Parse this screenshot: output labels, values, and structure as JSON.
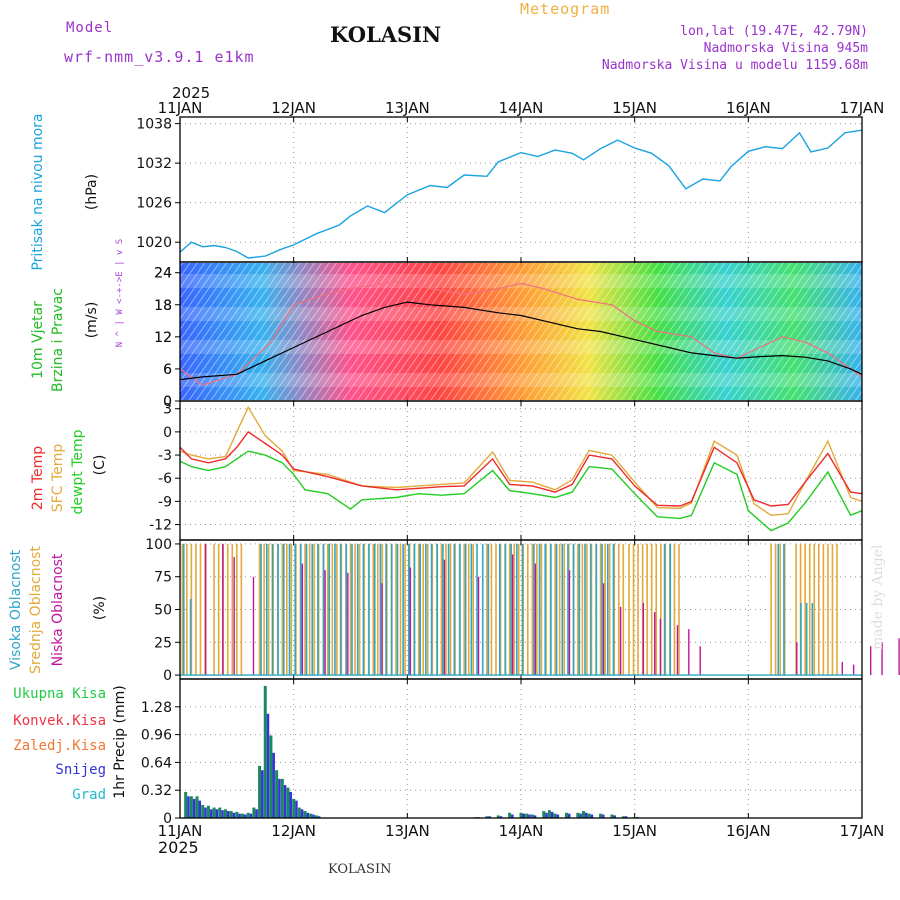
{
  "header": {
    "model_label": "Model",
    "model_name": "wrf-nmm_v3.9.1 e1km",
    "title": "KOLASIN",
    "product": "Meteogram",
    "coords": "lon,lat (19.47E, 42.79N)",
    "elevation": "Nadmorska Visina 945m",
    "model_elevation": "Nadmorska Visina u modelu 1159.68m",
    "year_top": "2025",
    "year_bottom": "2025",
    "footer": "KOLASIN",
    "credit": "made by Angel"
  },
  "colors": {
    "pressure": "#1aa3e0",
    "temp2m": "#ee2b2b",
    "sfc_temp": "#e3a93a",
    "dewpoint": "#22cc22",
    "high_cloud": "#2fa6c9",
    "mid_cloud": "#e3a93a",
    "low_cloud": "#c0159a",
    "total_precip": "#1a8a5a",
    "snow": "#3333dd",
    "title_purple": "#9933cc",
    "product_orange": "#f0b040"
  },
  "chart_data": [
    {
      "type": "line",
      "panel": "pressure",
      "ylabel_lines": [
        "Pritisak na nivou mora",
        "(hPa)"
      ],
      "x_ticks": [
        "11JAN",
        "12JAN",
        "13JAN",
        "14JAN",
        "15JAN",
        "16JAN",
        "17JAN"
      ],
      "yticks": [
        1020,
        1026,
        1032,
        1038
      ],
      "ylim": [
        1017,
        1039
      ],
      "grid": true,
      "series": [
        {
          "key": "pressure",
          "x": [
            0,
            0.1,
            0.2,
            0.3,
            0.4,
            0.5,
            0.6,
            0.75,
            0.9,
            1.0,
            1.2,
            1.4,
            1.5,
            1.65,
            1.8,
            2.0,
            2.2,
            2.35,
            2.5,
            2.7,
            2.8,
            3.0,
            3.15,
            3.3,
            3.45,
            3.55,
            3.7,
            3.85,
            4.0,
            4.15,
            4.3,
            4.45,
            4.6,
            4.75,
            4.85,
            5.0,
            5.15,
            5.3,
            5.45,
            5.55,
            5.7,
            5.85,
            6.0
          ],
          "values": [
            1018.5,
            1020,
            1019.3,
            1019.5,
            1019.2,
            1018.6,
            1017.6,
            1017.9,
            1019.0,
            1019.6,
            1021.3,
            1022.6,
            1024.0,
            1025.5,
            1024.5,
            1027.2,
            1028.6,
            1028.3,
            1030.2,
            1030.0,
            1032.2,
            1033.6,
            1033.0,
            1034.0,
            1033.5,
            1032.5,
            1034.2,
            1035.5,
            1034.3,
            1033.5,
            1031.6,
            1028.1,
            1029.6,
            1029.3,
            1031.5,
            1033.8,
            1034.5,
            1034.2,
            1036.6,
            1033.7,
            1034.3,
            1036.6,
            1037.0
          ]
        }
      ]
    },
    {
      "type": "line",
      "panel": "wind",
      "ylabel_lines": [
        "10m Vjetar",
        "Brzina i Pravac",
        "(m/s)"
      ],
      "compass_lines": [
        "N",
        "^",
        "|",
        "W <-+->E",
        "|",
        "v",
        "S"
      ],
      "yticks": [
        0,
        6,
        12,
        18,
        24
      ],
      "ylim": [
        0,
        26
      ],
      "grid": true,
      "series": [
        {
          "key": "speed",
          "x": [
            0,
            0.2,
            0.5,
            0.8,
            1.0,
            1.3,
            1.6,
            1.8,
            2.0,
            2.2,
            2.5,
            2.8,
            3.0,
            3.2,
            3.4,
            3.5,
            3.7,
            3.9,
            4.1,
            4.3,
            4.5,
            4.7,
            4.9,
            5.1,
            5.3,
            5.5,
            5.7,
            5.9,
            6.0
          ],
          "values": [
            4,
            4.5,
            5,
            8,
            10,
            13,
            16,
            17.5,
            18.5,
            18,
            17.5,
            16.5,
            16,
            15,
            14,
            13.5,
            13,
            12,
            11,
            10,
            9,
            8.5,
            8,
            8.3,
            8.5,
            8.2,
            7.5,
            6,
            5
          ]
        },
        {
          "key": "gust",
          "x": [
            0,
            0.2,
            0.5,
            0.8,
            1.0,
            1.3,
            1.5,
            1.8,
            2.0,
            2.2,
            2.5,
            2.8,
            3.0,
            3.2,
            3.5,
            3.8,
            4.0,
            4.2,
            4.5,
            4.7,
            4.9,
            5.1,
            5.3,
            5.5,
            5.7,
            5.9,
            6.0
          ],
          "values": [
            6,
            3,
            5,
            11,
            18,
            20,
            21,
            22,
            22.5,
            21,
            20,
            21,
            22,
            21,
            19,
            18,
            15,
            13,
            12,
            9,
            8,
            10,
            12,
            11,
            9,
            6,
            4.5
          ]
        }
      ]
    },
    {
      "type": "line",
      "panel": "temperature",
      "ylabel_lines": [
        "2m Temp",
        "SFC Temp",
        "dewpt Temp",
        "(C)"
      ],
      "yticks": [
        -12,
        -9,
        -6,
        -3,
        0,
        3
      ],
      "ylim": [
        -14,
        4
      ],
      "grid": true,
      "series": [
        {
          "key": "sfc",
          "x": [
            0,
            0.1,
            0.25,
            0.4,
            0.5,
            0.6,
            0.75,
            0.9,
            1.0,
            1.3,
            1.6,
            1.9,
            2.1,
            2.3,
            2.5,
            2.75,
            2.9,
            3.1,
            3.3,
            3.45,
            3.6,
            3.8,
            4.0,
            4.2,
            4.4,
            4.5,
            4.7,
            4.9,
            5.05,
            5.2,
            5.35,
            5.5,
            5.7,
            5.9,
            6.0
          ],
          "values": [
            -2.5,
            -3.0,
            -3.5,
            -3.2,
            0,
            3.2,
            -0.5,
            -2.5,
            -5.0,
            -5.5,
            -7,
            -7.2,
            -7,
            -6.8,
            -6.6,
            -2.6,
            -6.3,
            -6.5,
            -7.5,
            -6.2,
            -2.4,
            -3.0,
            -6.5,
            -9.8,
            -9.9,
            -9.2,
            -1.2,
            -3.0,
            -9.3,
            -10.8,
            -10.6,
            -6.5,
            -1.2,
            -8.5,
            -9.0
          ]
        },
        {
          "key": "t2m",
          "x": [
            0,
            0.1,
            0.25,
            0.4,
            0.5,
            0.6,
            0.75,
            0.9,
            1.0,
            1.3,
            1.6,
            1.9,
            2.1,
            2.3,
            2.5,
            2.75,
            2.9,
            3.1,
            3.3,
            3.45,
            3.6,
            3.8,
            4.0,
            4.2,
            4.4,
            4.5,
            4.7,
            4.9,
            5.05,
            5.2,
            5.35,
            5.5,
            5.7,
            5.9,
            6.0
          ],
          "values": [
            -2.0,
            -3.5,
            -4.0,
            -3.5,
            -2.0,
            0,
            -1.5,
            -3.0,
            -4.8,
            -5.8,
            -7,
            -7.5,
            -7.3,
            -7.1,
            -7.0,
            -3.5,
            -6.8,
            -7,
            -7.8,
            -6.8,
            -3.0,
            -3.5,
            -7,
            -9.5,
            -9.6,
            -9.0,
            -2.0,
            -4.0,
            -8.8,
            -9.6,
            -9.4,
            -6.5,
            -2.8,
            -7.8,
            -8.0
          ]
        },
        {
          "key": "dew",
          "x": [
            0,
            0.1,
            0.25,
            0.4,
            0.5,
            0.6,
            0.75,
            0.9,
            1.0,
            1.1,
            1.3,
            1.5,
            1.6,
            1.9,
            2.1,
            2.3,
            2.5,
            2.75,
            2.9,
            3.1,
            3.3,
            3.45,
            3.6,
            3.8,
            4.0,
            4.2,
            4.4,
            4.5,
            4.7,
            4.9,
            5.0,
            5.2,
            5.35,
            5.5,
            5.7,
            5.9,
            6.0
          ],
          "values": [
            -3.8,
            -4.5,
            -5.0,
            -4.5,
            -3.5,
            -2.5,
            -3.0,
            -4.0,
            -5.5,
            -7.5,
            -8.0,
            -10,
            -8.8,
            -8.5,
            -8.0,
            -8.2,
            -8.0,
            -5.0,
            -7.6,
            -8,
            -8.5,
            -7.8,
            -4.5,
            -4.8,
            -8,
            -11.0,
            -11.2,
            -10.8,
            -4.0,
            -5.5,
            -10.2,
            -12.8,
            -11.8,
            -9.2,
            -5.2,
            -10.8,
            -10.2
          ]
        }
      ]
    },
    {
      "type": "bar",
      "panel": "clouds",
      "ylabel_lines": [
        "Visoka Oblacnost",
        "Srednja Oblacnost",
        "Niska Oblacnost",
        "(%)"
      ],
      "yticks": [
        0,
        25,
        50,
        75,
        100
      ],
      "ylim": [
        -3,
        103
      ],
      "grid": true,
      "series": [
        {
          "key": "high",
          "segments": [
            [
              0.02,
              0.05,
              100
            ],
            [
              0.08,
              0.09,
              58
            ],
            [
              0.7,
              0.72,
              100
            ],
            [
              0.75,
              2.0,
              100
            ],
            [
              2.05,
              2.7,
              100
            ],
            [
              2.8,
              3.0,
              100
            ],
            [
              3.1,
              3.3,
              100
            ],
            [
              3.35,
              3.8,
              100
            ],
            [
              4.25,
              4.3,
              100
            ],
            [
              5.25,
              5.32,
              100
            ],
            [
              5.45,
              5.55,
              55
            ]
          ]
        },
        {
          "key": "mid",
          "segments": [
            [
              0.02,
              0.25,
              100
            ],
            [
              0.3,
              0.55,
              100
            ],
            [
              0.7,
              2.6,
              100
            ],
            [
              2.7,
              3.9,
              100
            ],
            [
              3.95,
              4.4,
              100
            ],
            [
              5.2,
              5.35,
              100
            ],
            [
              5.42,
              5.8,
              100
            ]
          ]
        },
        {
          "key": "low",
          "x": [
            0.2,
            0.35,
            0.45,
            0.62,
            1.05,
            1.25,
            1.45,
            1.75,
            2.0,
            2.3,
            2.6,
            2.9,
            3.1,
            3.4,
            3.7,
            3.85,
            4.05,
            4.15,
            4.2,
            4.35,
            4.45,
            4.55,
            5.4,
            5.8,
            5.9,
            6.05,
            6.15,
            6.3,
            6.35,
            6.45,
            6.6,
            6.75,
            6.85
          ],
          "values": [
            100,
            100,
            90,
            75,
            85,
            80,
            78,
            70,
            82,
            88,
            75,
            92,
            85,
            80,
            70,
            52,
            55,
            48,
            43,
            38,
            35,
            22,
            25,
            10,
            8,
            22,
            25,
            28,
            30,
            6,
            12,
            8,
            4
          ]
        }
      ]
    },
    {
      "type": "bar",
      "panel": "precipitation",
      "ylabel_lines": [
        "1hr Precip (mm)"
      ],
      "legend": [
        "Ukupna Kisa",
        "Konvek.Kisa",
        "Zaledj.Kisa",
        "Snijeg",
        "Grad"
      ],
      "yticks": [
        0,
        0.32,
        0.64,
        0.96,
        1.28
      ],
      "ylim": [
        0,
        1.6
      ],
      "grid": true,
      "series": [
        {
          "key": "total",
          "x": [
            0.05,
            0.1,
            0.15,
            0.2,
            0.25,
            0.3,
            0.35,
            0.4,
            0.45,
            0.5,
            0.55,
            0.6,
            0.65,
            0.7,
            0.75,
            0.8,
            0.85,
            0.9,
            0.95,
            1.0,
            1.05,
            1.1,
            1.15,
            1.2,
            2.6,
            2.7,
            2.8,
            2.9,
            3.0,
            3.05,
            3.1,
            3.2,
            3.25,
            3.3,
            3.4,
            3.5,
            3.55,
            3.6,
            3.7,
            3.8,
            3.9,
            4.0
          ],
          "values": [
            0.3,
            0.25,
            0.25,
            0.15,
            0.14,
            0.12,
            0.12,
            0.1,
            0.08,
            0.07,
            0.05,
            0.06,
            0.12,
            0.6,
            1.52,
            0.95,
            0.55,
            0.45,
            0.35,
            0.22,
            0.12,
            0.08,
            0.05,
            0.03,
            0.01,
            0.02,
            0.03,
            0.06,
            0.06,
            0.05,
            0.04,
            0.08,
            0.09,
            0.05,
            0.06,
            0.06,
            0.08,
            0.05,
            0.05,
            0.04,
            0.02,
            0.01
          ]
        },
        {
          "key": "snow",
          "x": [
            0.05,
            0.1,
            0.15,
            0.2,
            0.25,
            0.3,
            0.35,
            0.4,
            0.45,
            0.5,
            0.55,
            0.6,
            0.65,
            0.7,
            0.75,
            0.8,
            0.85,
            0.9,
            0.95,
            1.0,
            1.05,
            1.1,
            1.15,
            1.2,
            2.6,
            2.7,
            2.8,
            2.9,
            3.0,
            3.05,
            3.1,
            3.2,
            3.25,
            3.3,
            3.4,
            3.5,
            3.55,
            3.6,
            3.7,
            3.8,
            3.9,
            4.0
          ],
          "values": [
            0.25,
            0.22,
            0.2,
            0.12,
            0.1,
            0.1,
            0.09,
            0.08,
            0.06,
            0.05,
            0.04,
            0.05,
            0.1,
            0.55,
            1.2,
            0.75,
            0.45,
            0.38,
            0.3,
            0.2,
            0.1,
            0.06,
            0.04,
            0.02,
            0.01,
            0.02,
            0.02,
            0.04,
            0.05,
            0.04,
            0.03,
            0.06,
            0.07,
            0.04,
            0.05,
            0.05,
            0.06,
            0.04,
            0.04,
            0.03,
            0.02,
            0.01
          ]
        }
      ]
    }
  ]
}
